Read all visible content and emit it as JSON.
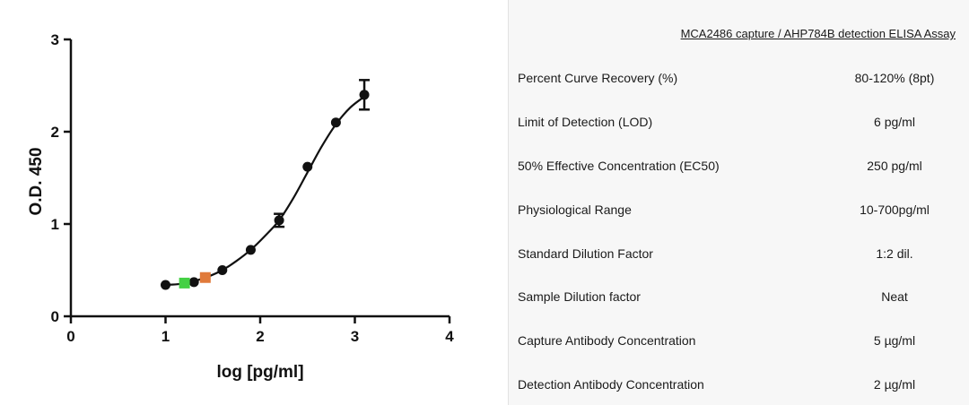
{
  "chart_data": {
    "type": "scatter",
    "title": "",
    "xlabel": "log [pg/ml]",
    "ylabel": "O.D. 450",
    "xlim": [
      0,
      4
    ],
    "ylim": [
      0,
      3
    ],
    "x_ticks": [
      "0",
      "1",
      "2",
      "3",
      "4"
    ],
    "y_ticks": [
      "0",
      "1",
      "2",
      "3"
    ],
    "grid": false,
    "series": [
      {
        "color": "#111111",
        "points": [
          {
            "x": 1.0,
            "y": 0.34
          },
          {
            "x": 1.3,
            "y": 0.37
          },
          {
            "x": 1.6,
            "y": 0.5
          },
          {
            "x": 1.9,
            "y": 0.72
          },
          {
            "x": 2.2,
            "y": 1.04,
            "err": 0.07
          },
          {
            "x": 2.5,
            "y": 1.62
          },
          {
            "x": 2.8,
            "y": 2.1
          },
          {
            "x": 3.1,
            "y": 2.4,
            "err": 0.16
          }
        ],
        "fit_curve": [
          [
            1.0,
            0.34
          ],
          [
            1.15,
            0.35
          ],
          [
            1.3,
            0.38
          ],
          [
            1.45,
            0.43
          ],
          [
            1.6,
            0.5
          ],
          [
            1.75,
            0.6
          ],
          [
            1.9,
            0.72
          ],
          [
            2.05,
            0.87
          ],
          [
            2.2,
            1.04
          ],
          [
            2.35,
            1.28
          ],
          [
            2.5,
            1.56
          ],
          [
            2.65,
            1.84
          ],
          [
            2.8,
            2.08
          ],
          [
            2.95,
            2.26
          ],
          [
            3.1,
            2.38
          ]
        ]
      }
    ],
    "sample_markers": [
      {
        "x": 1.2,
        "y": 0.36,
        "color": "#44d044"
      },
      {
        "x": 1.42,
        "y": 0.42,
        "color": "#e07a3a"
      }
    ]
  },
  "table": {
    "title": "MCA2486 capture / AHP784B detection ELISA Assay",
    "rows": [
      {
        "label": "Percent Curve Recovery (%)",
        "value": "80-120% (8pt)"
      },
      {
        "label": "Limit of Detection (LOD)",
        "value": "6 pg/ml"
      },
      {
        "label": "50% Effective Concentration (EC50)",
        "value": "250 pg/ml"
      },
      {
        "label": "Physiological Range",
        "value": "10-700pg/ml"
      },
      {
        "label": "Standard Dilution Factor",
        "value": "1:2 dil."
      },
      {
        "label": "Sample Dilution factor",
        "value": "Neat"
      },
      {
        "label": "Capture Antibody Concentration",
        "value": "5 µg/ml"
      },
      {
        "label": "Detection Antibody Concentration",
        "value": "2 µg/ml"
      }
    ]
  }
}
